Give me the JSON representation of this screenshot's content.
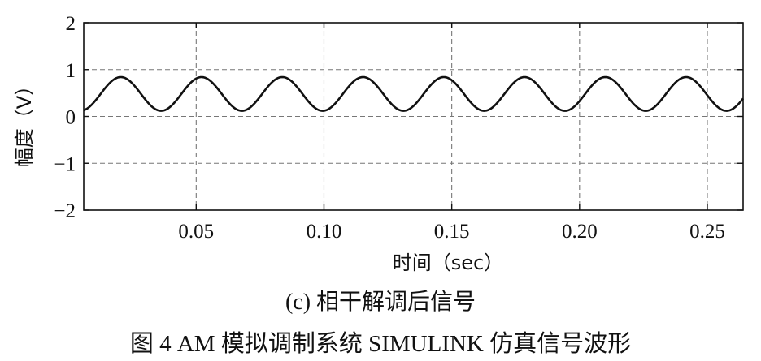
{
  "chart_data": {
    "type": "line",
    "xlabel": "时间（sec）",
    "ylabel": "幅度（V）",
    "xlim": [
      0.006,
      0.264
    ],
    "ylim": [
      -2,
      2
    ],
    "xticks": [
      0.05,
      0.1,
      0.15,
      0.2,
      0.25
    ],
    "xtick_labels": [
      "0.05",
      "0.10",
      "0.15",
      "0.20",
      "0.25"
    ],
    "yticks": [
      2,
      1,
      0,
      -1,
      -2
    ],
    "ytick_labels": [
      "2",
      "1",
      "0",
      "−1",
      "−2"
    ],
    "grid": true,
    "series": [
      {
        "signal": "sinusoid",
        "offset": 0.48,
        "amplitude": 0.36,
        "period": 0.0316,
        "peak_at": 0.0205,
        "x_start": 0.006,
        "x_end": 0.264,
        "color": "#111111"
      }
    ]
  },
  "captions": {
    "subfigure": "(c) 相干解调后信号",
    "figure": "图 4   AM 模拟调制系统 SIMULINK 仿真信号波形"
  }
}
